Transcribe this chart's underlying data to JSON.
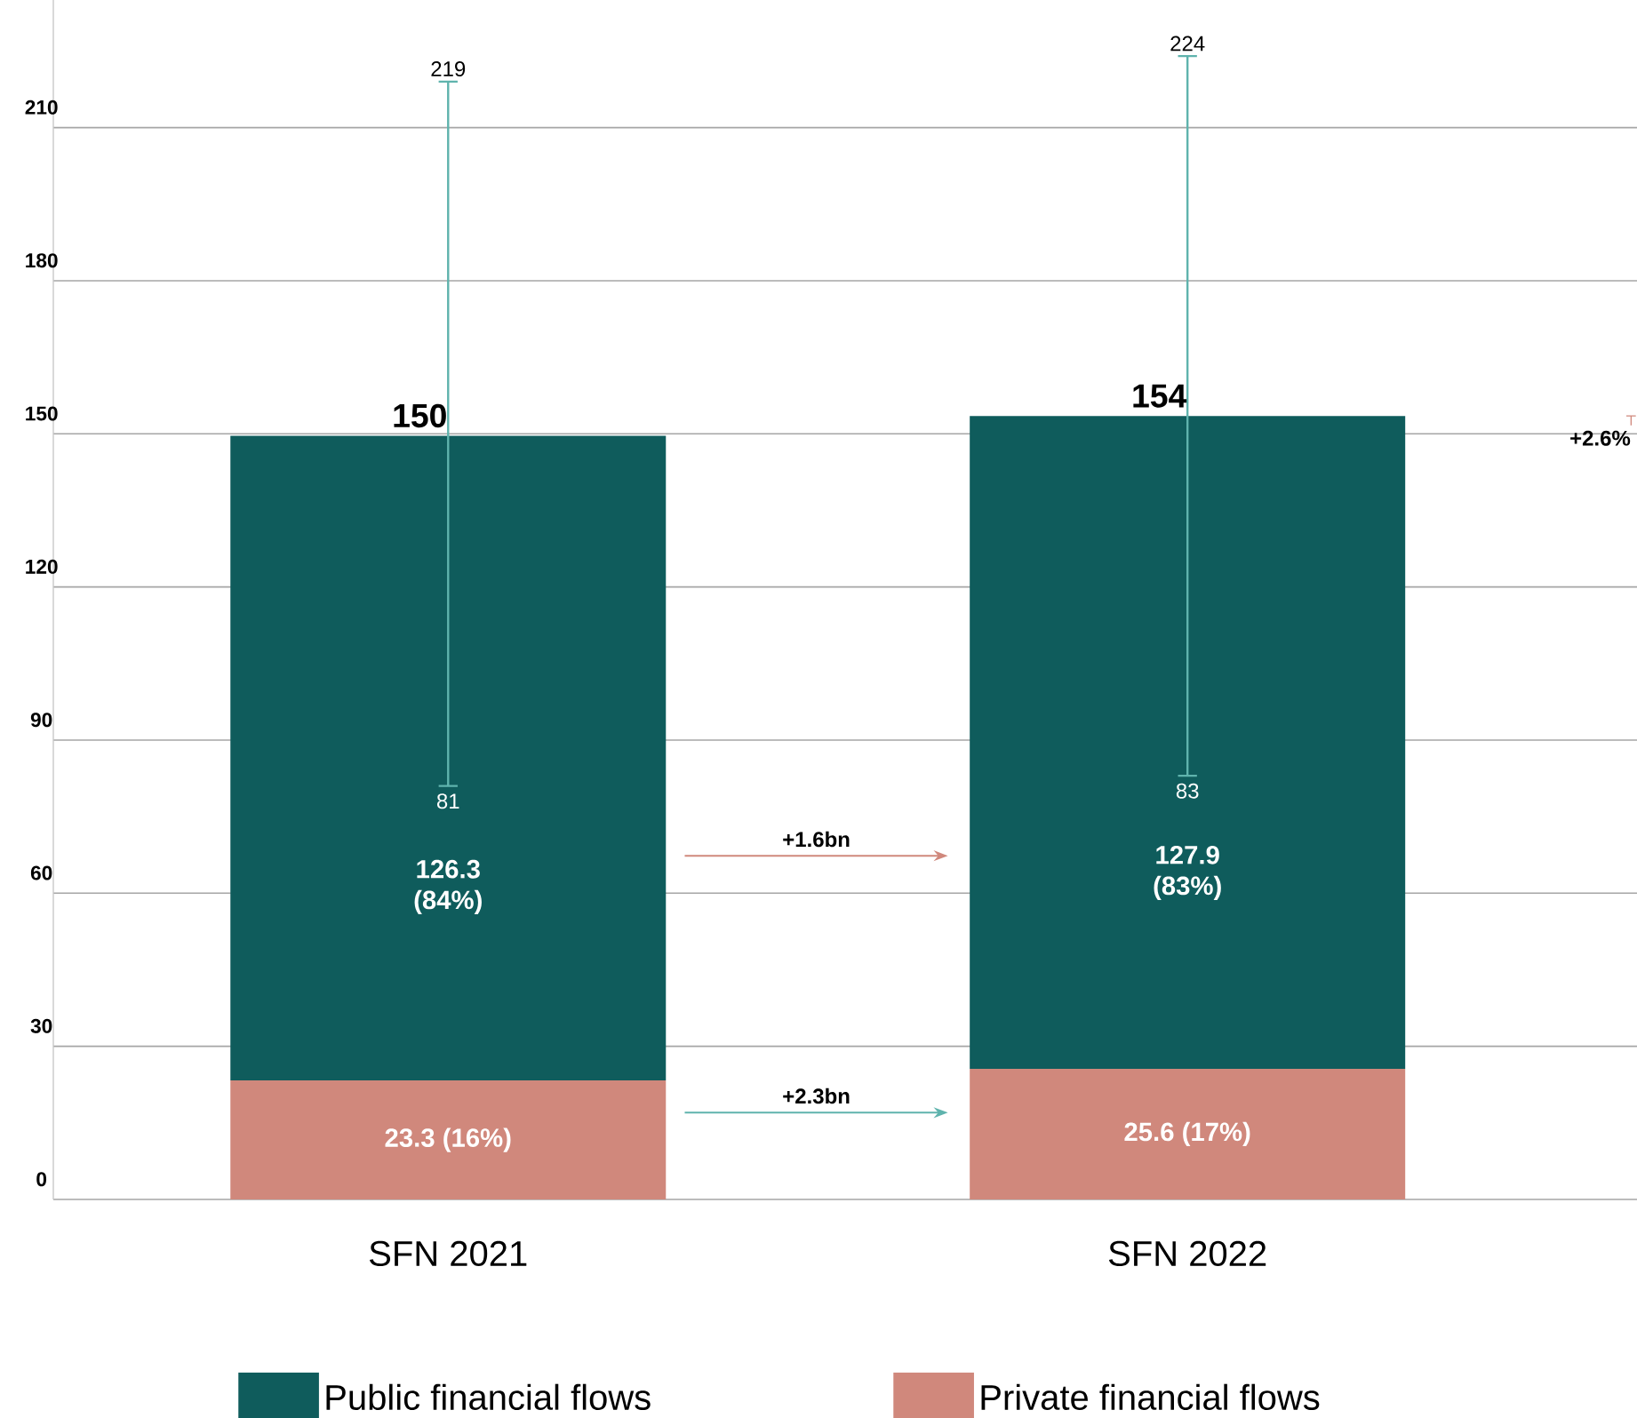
{
  "chart_data": {
    "type": "bar",
    "stacked": true,
    "categories": [
      "SFN 2021",
      "SFN 2022"
    ],
    "series": [
      {
        "name": "Private financial flows",
        "color": "#d0887c",
        "values": [
          23.3,
          25.6
        ],
        "value_labels": [
          "23.3 (16%)",
          "25.6 (17%)"
        ]
      },
      {
        "name": "Public financial flows",
        "color": "#0f5c5c",
        "values": [
          126.3,
          127.9
        ],
        "value_labels": [
          "126.3 (84%)",
          "127.9 (83%)"
        ],
        "errors": [
          [
            81,
            219
          ],
          [
            83,
            224
          ]
        ]
      }
    ],
    "totals": [
      "150",
      "154"
    ],
    "ylim": [
      0,
      235
    ],
    "yticks": [
      0,
      30,
      60,
      90,
      120,
      150,
      180,
      210
    ],
    "grid": "y",
    "legend": "bottom",
    "annotations": [
      "+1.6bn",
      "+2.3bn",
      "+2.6%",
      {
        "text": "219",
        "x": "SFN 2021",
        "y": 219
      },
      {
        "text": "81",
        "x": "SFN 2021",
        "y": 81
      },
      {
        "text": "224",
        "x": "SFN 2022",
        "y": 224
      },
      {
        "text": "83",
        "x": "SFN 2022",
        "y": 83
      }
    ]
  }
}
